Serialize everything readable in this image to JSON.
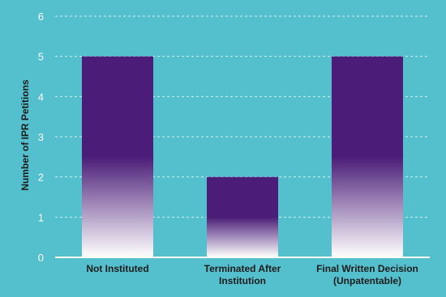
{
  "chart_data": {
    "type": "bar",
    "categories": [
      "Not Instituted",
      "Terminated After Institution",
      "Final Written Decision (Unpatentable)"
    ],
    "category_lines": [
      [
        "Not Instituted"
      ],
      [
        "Terminated After",
        "Institution"
      ],
      [
        "Final Written Decision",
        "(Unpatentable)"
      ]
    ],
    "values": [
      5,
      2,
      5
    ],
    "title": "",
    "xlabel": "",
    "ylabel": "Number of IPR Petitions",
    "ylim": [
      0,
      6
    ],
    "yticks": [
      0,
      1,
      2,
      3,
      4,
      5,
      6
    ],
    "grid": true,
    "legend": "none",
    "colors": {
      "background": "#54bfcd",
      "bar_top": "#4b1d78",
      "bar_bottom": "#ffffff",
      "text": "#1c1c1c",
      "tick_text": "#ffffff",
      "grid": "#ffffff"
    }
  }
}
